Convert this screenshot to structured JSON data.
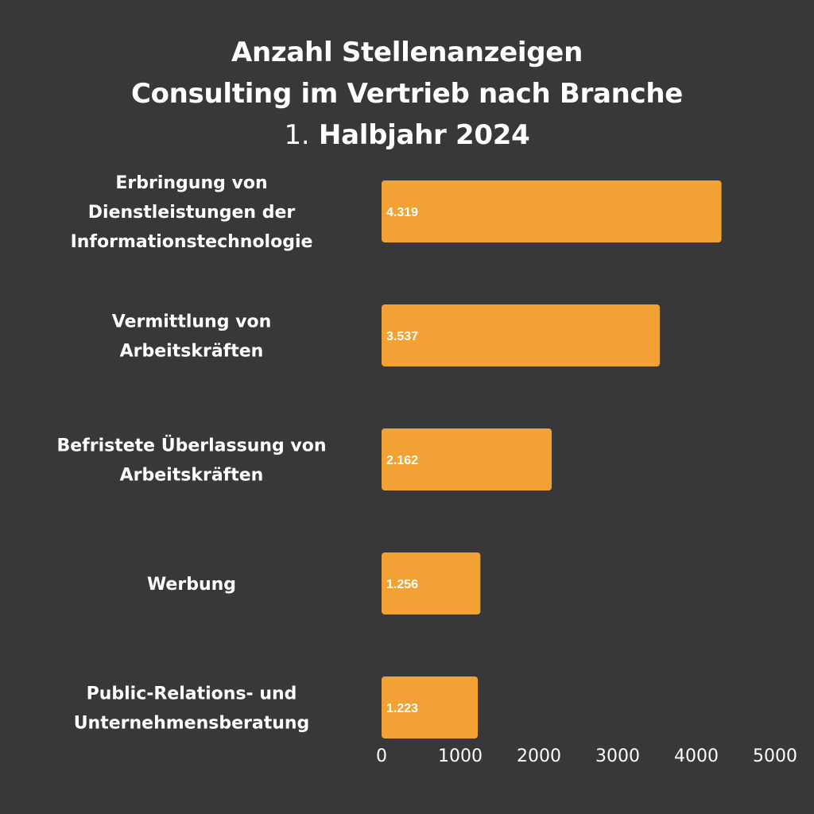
{
  "title": {
    "line1": "Anzahl Stellenanzeigen",
    "line2": "Consulting im Vertrieb nach Branche",
    "line3_prefix": "1.",
    "line3_main": "Halbjahr 2024"
  },
  "colors": {
    "background": "#38383a",
    "bar": "#f2a134",
    "text": "#ffffff"
  },
  "chart_data": {
    "type": "bar",
    "orientation": "horizontal",
    "title": "Anzahl Stellenanzeigen Consulting im Vertrieb nach Branche 1. Halbjahr 2024",
    "categories": [
      [
        "Erbringung von",
        "Dienstleistungen der",
        "Informationstechnologie"
      ],
      [
        "Vermittlung von",
        "Arbeitskräften"
      ],
      [
        "Befristete Überlassung von",
        "Arbeitskräften"
      ],
      [
        "Werbung"
      ],
      [
        "Public-Relations- und",
        "Unternehmensberatung"
      ]
    ],
    "values": [
      4319,
      3537,
      2162,
      1256,
      1223
    ],
    "value_labels": [
      "4.319",
      "3.537",
      "2.162",
      "1.256",
      "1.223"
    ],
    "xlim": [
      0,
      5000
    ],
    "xticks": [
      "0",
      "1000",
      "2000",
      "3000",
      "4000",
      "5000"
    ],
    "grid": false,
    "legend": "none"
  }
}
